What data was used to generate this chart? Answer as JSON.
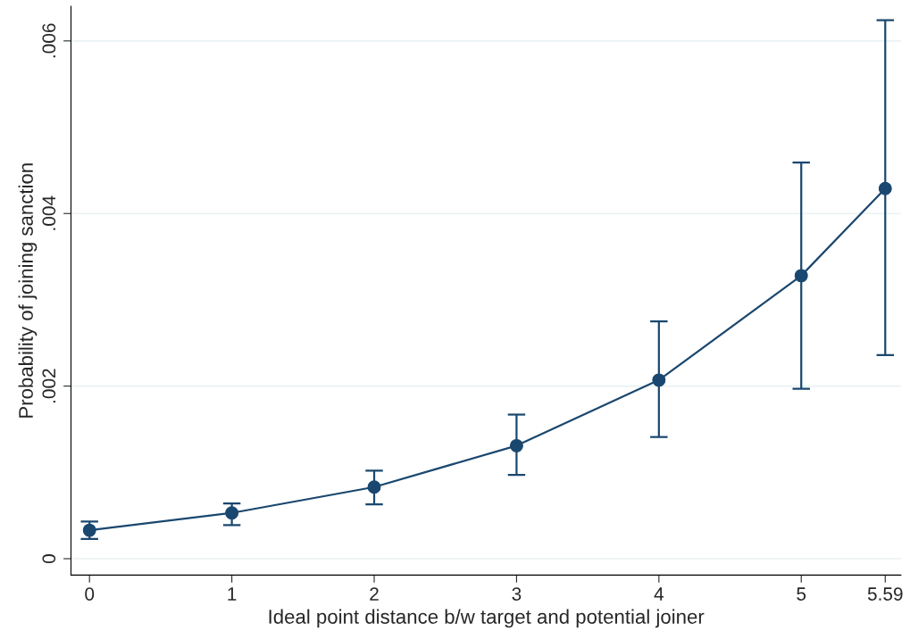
{
  "chart_data": {
    "type": "line",
    "xlabel": "Ideal point distance b/w target and potential joiner",
    "ylabel": "Probability of joining sanction",
    "x": [
      0,
      1,
      2,
      3,
      4,
      5,
      5.59
    ],
    "series": [
      {
        "color": "#1a476f",
        "values": [
          0.00033,
          0.00053,
          0.00083,
          0.00131,
          0.00207,
          0.00328,
          0.00429
        ],
        "errors": [
          [
            0.00023,
            0.00043
          ],
          [
            0.00039,
            0.00064
          ],
          [
            0.00063,
            0.00102
          ],
          [
            0.00097,
            0.00167
          ],
          [
            0.00141,
            0.00275
          ],
          [
            0.00197,
            0.00459
          ],
          [
            0.00236,
            0.00624
          ]
        ]
      }
    ],
    "xlim": [
      -0.13,
      5.7
    ],
    "xticks": [
      0,
      1,
      2,
      3,
      4,
      5,
      5.59
    ],
    "ylim": [
      -0.00019,
      0.0064
    ],
    "yticks": [
      0,
      {
        "value": 0.002,
        "label": ".002"
      },
      {
        "value": 0.004,
        "label": ".004"
      },
      {
        "value": 0.006,
        "label": ".006"
      }
    ],
    "grid": "y",
    "marker": "circle",
    "line_style": "solid"
  }
}
